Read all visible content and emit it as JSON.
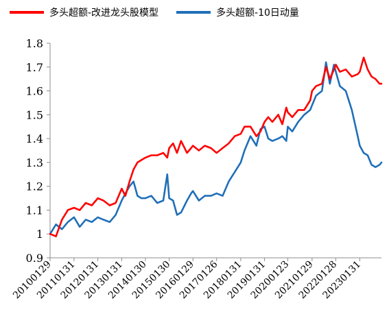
{
  "chart_data": {
    "type": "line",
    "title": "",
    "xlabel": "",
    "ylabel": "",
    "ylim": [
      0.9,
      1.8
    ],
    "yticks": [
      "0.9",
      "1",
      "1.1",
      "1.2",
      "1.3",
      "1.4",
      "1.5",
      "1.6",
      "1.7",
      "1.8"
    ],
    "categories": [
      "20100129",
      "20110131",
      "20120131",
      "20130131",
      "20140130",
      "20150130",
      "20160129",
      "20170126",
      "20180131",
      "20190131",
      "20200123",
      "20210129",
      "20220128",
      "20230131"
    ],
    "x_end": "2023-12-29",
    "legend_position": "top",
    "grid": false,
    "series": [
      {
        "name": "多头超额-改进龙头股模型",
        "color": "#ff0000",
        "points": [
          [
            "2010-01-29",
            1.0
          ],
          [
            "2010-04-30",
            0.99
          ],
          [
            "2010-07-30",
            1.06
          ],
          [
            "2010-10-29",
            1.1
          ],
          [
            "2011-01-31",
            1.11
          ],
          [
            "2011-04-29",
            1.1
          ],
          [
            "2011-07-29",
            1.13
          ],
          [
            "2011-10-31",
            1.12
          ],
          [
            "2012-01-31",
            1.15
          ],
          [
            "2012-04-27",
            1.14
          ],
          [
            "2012-07-31",
            1.12
          ],
          [
            "2012-10-31",
            1.13
          ],
          [
            "2013-01-31",
            1.19
          ],
          [
            "2013-03-29",
            1.16
          ],
          [
            "2013-05-31",
            1.22
          ],
          [
            "2013-07-31",
            1.27
          ],
          [
            "2013-09-30",
            1.3
          ],
          [
            "2013-11-29",
            1.31
          ],
          [
            "2014-01-30",
            1.32
          ],
          [
            "2014-04-30",
            1.33
          ],
          [
            "2014-07-31",
            1.33
          ],
          [
            "2014-10-31",
            1.34
          ],
          [
            "2014-12-31",
            1.32
          ],
          [
            "2015-01-30",
            1.36
          ],
          [
            "2015-03-31",
            1.38
          ],
          [
            "2015-05-29",
            1.34
          ],
          [
            "2015-07-31",
            1.39
          ],
          [
            "2015-10-30",
            1.34
          ],
          [
            "2015-12-31",
            1.36
          ],
          [
            "2016-01-29",
            1.37
          ],
          [
            "2016-04-29",
            1.35
          ],
          [
            "2016-07-29",
            1.37
          ],
          [
            "2016-10-31",
            1.36
          ],
          [
            "2017-01-26",
            1.34
          ],
          [
            "2017-04-28",
            1.36
          ],
          [
            "2017-07-31",
            1.38
          ],
          [
            "2017-10-31",
            1.41
          ],
          [
            "2018-01-31",
            1.42
          ],
          [
            "2018-03-30",
            1.45
          ],
          [
            "2018-06-29",
            1.45
          ],
          [
            "2018-09-28",
            1.41
          ],
          [
            "2018-11-30",
            1.43
          ],
          [
            "2019-01-31",
            1.47
          ],
          [
            "2019-03-29",
            1.49
          ],
          [
            "2019-05-31",
            1.47
          ],
          [
            "2019-08-30",
            1.5
          ],
          [
            "2019-10-31",
            1.46
          ],
          [
            "2019-12-31",
            1.53
          ],
          [
            "2020-01-23",
            1.51
          ],
          [
            "2020-03-31",
            1.49
          ],
          [
            "2020-06-30",
            1.52
          ],
          [
            "2020-09-30",
            1.52
          ],
          [
            "2020-12-31",
            1.56
          ],
          [
            "2021-01-29",
            1.6
          ],
          [
            "2021-03-31",
            1.62
          ],
          [
            "2021-06-30",
            1.63
          ],
          [
            "2021-08-31",
            1.7
          ],
          [
            "2021-10-29",
            1.65
          ],
          [
            "2021-12-31",
            1.69
          ],
          [
            "2022-01-28",
            1.71
          ],
          [
            "2022-03-31",
            1.68
          ],
          [
            "2022-06-30",
            1.69
          ],
          [
            "2022-09-30",
            1.66
          ],
          [
            "2022-12-30",
            1.67
          ],
          [
            "2023-01-31",
            1.68
          ],
          [
            "2023-03-31",
            1.74
          ],
          [
            "2023-05-31",
            1.69
          ],
          [
            "2023-07-31",
            1.66
          ],
          [
            "2023-09-28",
            1.65
          ],
          [
            "2023-11-30",
            1.63
          ],
          [
            "2023-12-29",
            1.63
          ]
        ]
      },
      {
        "name": "多头超额-10日动量",
        "color": "#1f6fb8",
        "points": [
          [
            "2010-01-29",
            1.0
          ],
          [
            "2010-04-30",
            1.04
          ],
          [
            "2010-07-30",
            1.02
          ],
          [
            "2010-10-29",
            1.05
          ],
          [
            "2011-01-31",
            1.07
          ],
          [
            "2011-04-29",
            1.03
          ],
          [
            "2011-07-29",
            1.06
          ],
          [
            "2011-10-31",
            1.05
          ],
          [
            "2012-01-31",
            1.07
          ],
          [
            "2012-04-27",
            1.06
          ],
          [
            "2012-07-31",
            1.05
          ],
          [
            "2012-10-31",
            1.08
          ],
          [
            "2013-01-31",
            1.14
          ],
          [
            "2013-03-29",
            1.17
          ],
          [
            "2013-05-31",
            1.2
          ],
          [
            "2013-07-31",
            1.22
          ],
          [
            "2013-09-30",
            1.16
          ],
          [
            "2013-11-29",
            1.15
          ],
          [
            "2014-01-30",
            1.15
          ],
          [
            "2014-04-30",
            1.16
          ],
          [
            "2014-07-31",
            1.13
          ],
          [
            "2014-10-31",
            1.14
          ],
          [
            "2014-12-31",
            1.25
          ],
          [
            "2015-01-30",
            1.15
          ],
          [
            "2015-03-31",
            1.14
          ],
          [
            "2015-05-29",
            1.08
          ],
          [
            "2015-07-31",
            1.09
          ],
          [
            "2015-10-30",
            1.14
          ],
          [
            "2015-12-31",
            1.17
          ],
          [
            "2016-01-29",
            1.18
          ],
          [
            "2016-04-29",
            1.14
          ],
          [
            "2016-07-29",
            1.16
          ],
          [
            "2016-10-31",
            1.16
          ],
          [
            "2017-01-26",
            1.17
          ],
          [
            "2017-04-28",
            1.16
          ],
          [
            "2017-07-31",
            1.22
          ],
          [
            "2017-10-31",
            1.26
          ],
          [
            "2018-01-31",
            1.3
          ],
          [
            "2018-03-30",
            1.35
          ],
          [
            "2018-06-29",
            1.41
          ],
          [
            "2018-09-28",
            1.37
          ],
          [
            "2018-11-30",
            1.44
          ],
          [
            "2019-01-31",
            1.45
          ],
          [
            "2019-03-29",
            1.4
          ],
          [
            "2019-05-31",
            1.39
          ],
          [
            "2019-08-30",
            1.4
          ],
          [
            "2019-10-31",
            1.41
          ],
          [
            "2019-12-31",
            1.39
          ],
          [
            "2020-01-23",
            1.45
          ],
          [
            "2020-03-31",
            1.43
          ],
          [
            "2020-06-30",
            1.47
          ],
          [
            "2020-09-30",
            1.5
          ],
          [
            "2020-12-31",
            1.52
          ],
          [
            "2021-01-29",
            1.54
          ],
          [
            "2021-03-31",
            1.58
          ],
          [
            "2021-06-30",
            1.6
          ],
          [
            "2021-08-31",
            1.72
          ],
          [
            "2021-10-29",
            1.63
          ],
          [
            "2021-12-31",
            1.71
          ],
          [
            "2022-01-28",
            1.68
          ],
          [
            "2022-03-31",
            1.62
          ],
          [
            "2022-06-30",
            1.6
          ],
          [
            "2022-09-30",
            1.52
          ],
          [
            "2022-12-30",
            1.41
          ],
          [
            "2023-01-31",
            1.37
          ],
          [
            "2023-03-31",
            1.34
          ],
          [
            "2023-05-31",
            1.33
          ],
          [
            "2023-07-31",
            1.29
          ],
          [
            "2023-09-28",
            1.28
          ],
          [
            "2023-11-30",
            1.29
          ],
          [
            "2023-12-29",
            1.3
          ]
        ]
      }
    ]
  }
}
